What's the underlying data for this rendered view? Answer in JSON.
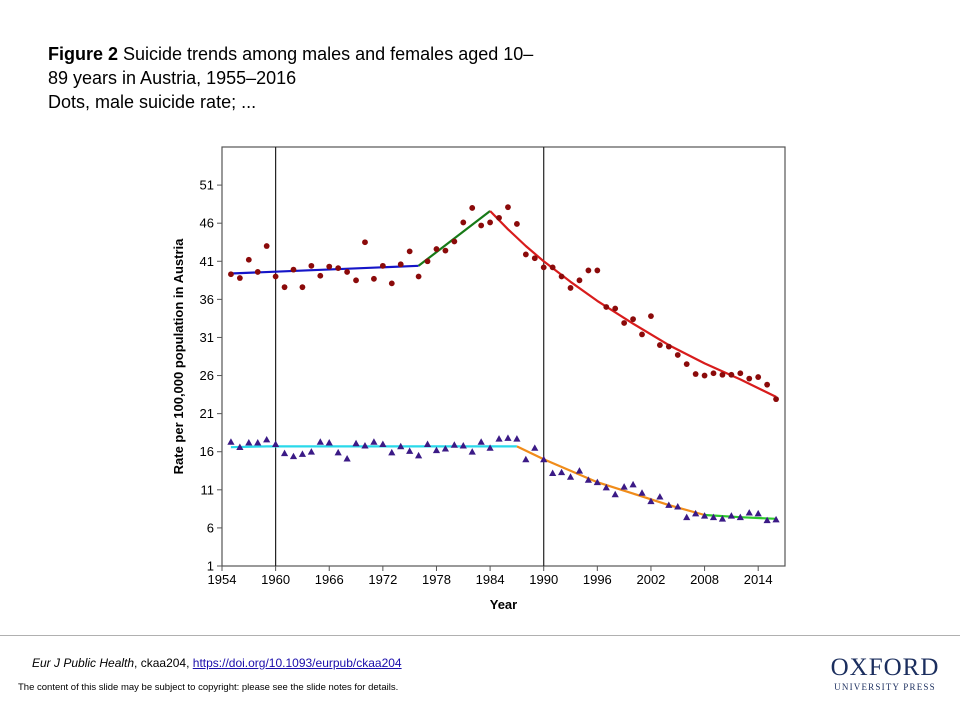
{
  "figure": {
    "label": "Figure 2",
    "caption_line1": " Suicide trends among males and females aged 10–",
    "caption_line2": "89 years in Austria, 1955–2016",
    "caption_line3": "Dots, male suicide rate; ..."
  },
  "chart_data": {
    "type": "scatter",
    "xlabel": "Year",
    "ylabel": "Rate per 100,000 population in Austria",
    "xlim": [
      1954,
      2017
    ],
    "ylim": [
      1,
      56
    ],
    "x_ticks": [
      1954,
      1960,
      1966,
      1972,
      1978,
      1984,
      1990,
      1996,
      2002,
      2008,
      2014
    ],
    "y_ticks": [
      1,
      6,
      11,
      16,
      21,
      26,
      31,
      36,
      41,
      46,
      51
    ],
    "grid": false,
    "vertical_reference_lines": [
      1960,
      1990
    ],
    "series": [
      {
        "marker": "circle",
        "color": "#8b0a0a",
        "x": [
          1955,
          1956,
          1957,
          1958,
          1959,
          1960,
          1961,
          1962,
          1963,
          1964,
          1965,
          1966,
          1967,
          1968,
          1969,
          1970,
          1971,
          1972,
          1973,
          1974,
          1975,
          1976,
          1977,
          1978,
          1979,
          1980,
          1981,
          1982,
          1983,
          1984,
          1985,
          1986,
          1987,
          1988,
          1989,
          1990,
          1991,
          1992,
          1993,
          1994,
          1995,
          1996,
          1997,
          1998,
          1999,
          2000,
          2001,
          2002,
          2003,
          2004,
          2005,
          2006,
          2007,
          2008,
          2009,
          2010,
          2011,
          2012,
          2013,
          2014,
          2015,
          2016
        ],
        "y": [
          39.3,
          38.8,
          41.2,
          39.6,
          43.0,
          39.0,
          37.6,
          39.9,
          37.6,
          40.4,
          39.1,
          40.3,
          40.1,
          39.6,
          38.5,
          43.5,
          38.7,
          40.4,
          38.1,
          40.6,
          42.3,
          39.0,
          41.0,
          42.6,
          42.4,
          43.6,
          46.1,
          48.0,
          45.7,
          46.1,
          46.7,
          48.1,
          45.9,
          41.9,
          41.4,
          40.2,
          40.2,
          39.0,
          37.5,
          38.5,
          39.8,
          39.8,
          35.0,
          34.8,
          32.9,
          33.4,
          31.4,
          33.8,
          30.0,
          29.8,
          28.7,
          27.5,
          26.2,
          26.0,
          26.3,
          26.1,
          26.1,
          26.3,
          25.6,
          25.8,
          24.8,
          22.9
        ]
      },
      {
        "marker": "triangle",
        "color": "#3b1a86",
        "x": [
          1955,
          1956,
          1957,
          1958,
          1959,
          1960,
          1961,
          1962,
          1963,
          1964,
          1965,
          1966,
          1967,
          1968,
          1969,
          1970,
          1971,
          1972,
          1973,
          1974,
          1975,
          1976,
          1977,
          1978,
          1979,
          1980,
          1981,
          1982,
          1983,
          1984,
          1985,
          1986,
          1987,
          1988,
          1989,
          1990,
          1991,
          1992,
          1993,
          1994,
          1995,
          1996,
          1997,
          1998,
          1999,
          2000,
          2001,
          2002,
          2003,
          2004,
          2005,
          2006,
          2007,
          2008,
          2009,
          2010,
          2011,
          2012,
          2013,
          2014,
          2015,
          2016
        ],
        "y": [
          17.3,
          16.6,
          17.2,
          17.2,
          17.6,
          17.0,
          15.8,
          15.4,
          15.7,
          16.0,
          17.3,
          17.2,
          15.9,
          15.1,
          17.1,
          16.8,
          17.3,
          17.0,
          15.9,
          16.7,
          16.1,
          15.5,
          17.0,
          16.2,
          16.4,
          16.9,
          16.8,
          16.0,
          17.3,
          16.5,
          17.7,
          17.8,
          17.7,
          15.0,
          16.5,
          15.0,
          13.2,
          13.3,
          12.7,
          13.5,
          12.3,
          12.0,
          11.3,
          10.4,
          11.4,
          11.7,
          10.6,
          9.5,
          10.1,
          9.0,
          8.8,
          7.4,
          7.9,
          7.6,
          7.4,
          7.2,
          7.6,
          7.4,
          8.0,
          7.9,
          7.0,
          7.1
        ]
      }
    ],
    "trend_segments": [
      {
        "color": "#1515c8",
        "points": [
          [
            1955,
            39.4
          ],
          [
            1976,
            40.4
          ]
        ]
      },
      {
        "color": "#177a17",
        "points": [
          [
            1976,
            40.4
          ],
          [
            1984,
            47.6
          ]
        ]
      },
      {
        "color": "#d81c1c",
        "points": [
          [
            1984,
            47.6
          ],
          [
            1986,
            45.2
          ],
          [
            1988,
            43.0
          ],
          [
            1990,
            41.0
          ],
          [
            1993,
            38.3
          ],
          [
            1996,
            35.8
          ],
          [
            2000,
            32.8
          ],
          [
            2004,
            30.0
          ],
          [
            2008,
            27.6
          ],
          [
            2012,
            25.5
          ],
          [
            2016,
            23.2
          ]
        ]
      },
      {
        "color": "#29d9ea",
        "points": [
          [
            1955,
            16.6
          ],
          [
            1959,
            16.7
          ],
          [
            1987,
            16.7
          ]
        ]
      },
      {
        "color": "#f08c1a",
        "points": [
          [
            1987,
            16.7
          ],
          [
            1990,
            15.0
          ],
          [
            1993,
            13.5
          ],
          [
            1996,
            12.0
          ],
          [
            2000,
            10.5
          ],
          [
            2004,
            9.0
          ],
          [
            2008,
            7.7
          ]
        ]
      },
      {
        "color": "#2dc82d",
        "points": [
          [
            2008,
            7.7
          ],
          [
            2012,
            7.4
          ],
          [
            2016,
            7.2
          ]
        ]
      }
    ]
  },
  "footer": {
    "journal": "Eur J Public Health",
    "article_id": ", ckaa204, ",
    "doi_link": "https://doi.org/10.1093/eurpub/ckaa204",
    "copyright_note": "The content of this slide may be subject to copyright: please see the slide notes for details."
  },
  "publisher": {
    "name": "OXFORD",
    "subname": "UNIVERSITY PRESS",
    "color": "#1b2e5e"
  }
}
